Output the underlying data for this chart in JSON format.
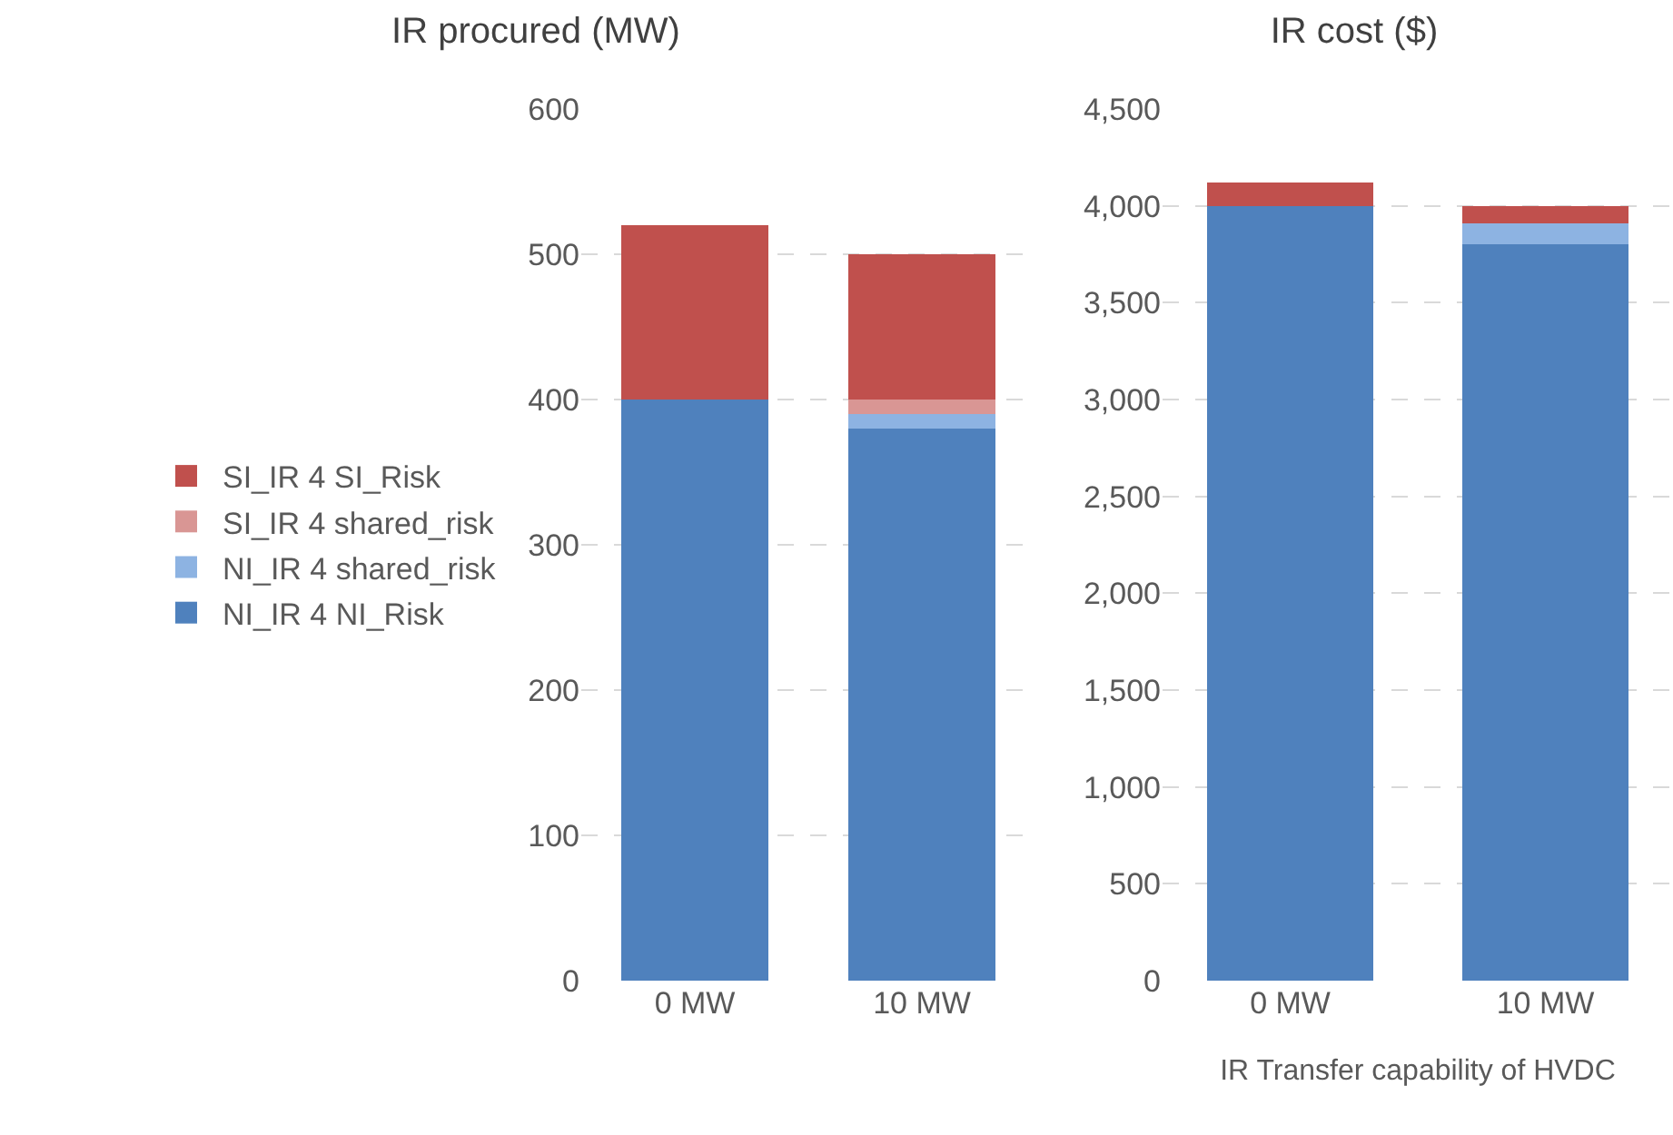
{
  "chart_data": [
    {
      "type": "bar",
      "stacked": true,
      "title": "IR procured (MW)",
      "categories": [
        "0 MW",
        "10 MW"
      ],
      "series": [
        {
          "name": "NI_IR 4 NI_Risk",
          "color": "#4f81bd",
          "values": [
            400,
            380
          ]
        },
        {
          "name": "NI_IR 4 shared_risk",
          "color": "#8db3e2",
          "values": [
            0,
            10
          ]
        },
        {
          "name": "SI_IR 4 shared_risk",
          "color": "#d99694",
          "values": [
            0,
            10
          ]
        },
        {
          "name": "SI_IR 4 SI_Risk",
          "color": "#c0504d",
          "values": [
            120,
            100
          ]
        }
      ],
      "ylim": [
        0,
        600
      ],
      "yticks": [
        0,
        100,
        200,
        300,
        400,
        500,
        600
      ],
      "grid": "y",
      "legend": "left"
    },
    {
      "type": "bar",
      "stacked": true,
      "title": "IR cost ($)",
      "xlabel": "IR Transfer capability of HVDC",
      "categories": [
        "0 MW",
        "10 MW"
      ],
      "series": [
        {
          "color": "#4f81bd",
          "values": [
            4000,
            3800
          ]
        },
        {
          "color": "#8db3e2",
          "values": [
            0,
            110
          ]
        },
        {
          "color": "#d99694",
          "values": [
            0,
            0
          ]
        },
        {
          "color": "#c0504d",
          "values": [
            120,
            90
          ]
        }
      ],
      "ylim": [
        0,
        4500
      ],
      "yticks": [
        {
          "value": 0,
          "label": "0"
        },
        {
          "value": 500,
          "label": "500"
        },
        {
          "value": 1000,
          "label": "1,000"
        },
        {
          "value": 1500,
          "label": "1,500"
        },
        {
          "value": 2000,
          "label": "2,000"
        },
        {
          "value": 2500,
          "label": "2,500"
        },
        {
          "value": 3000,
          "label": "3,000"
        },
        {
          "value": 3500,
          "label": "3,500"
        },
        {
          "value": 4000,
          "label": "4,000"
        },
        {
          "value": 4500,
          "label": "4,500"
        }
      ],
      "grid": "y",
      "legend": false
    }
  ]
}
